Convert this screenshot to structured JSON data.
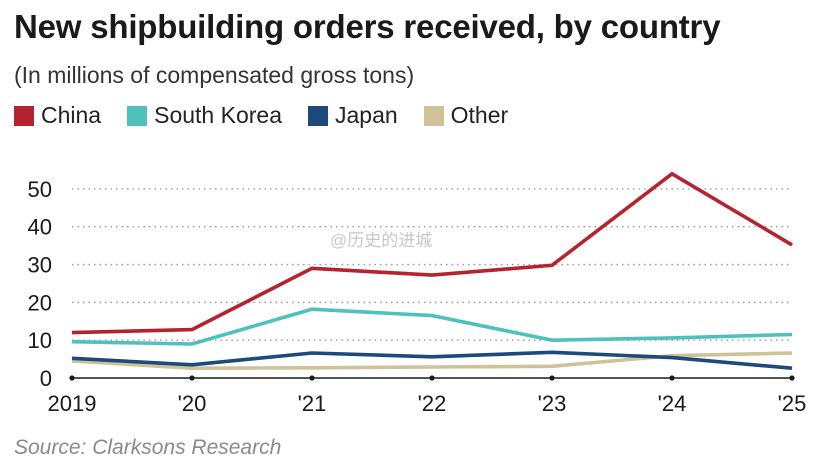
{
  "title": "New shipbuilding orders received, by country",
  "subtitle": "(In millions of compensated gross tons)",
  "source": "Source: Clarksons Research",
  "watermark": "@历史的进城",
  "chart_data": {
    "type": "line",
    "title": "New shipbuilding orders received, by country",
    "subtitle": "(In millions of compensated gross tons)",
    "x": [
      "2019",
      "'20",
      "'21",
      "'22",
      "'23",
      "'24",
      "'25"
    ],
    "ylim": [
      0,
      55
    ],
    "yticks": [
      0,
      10,
      20,
      30,
      40,
      50
    ],
    "grid": true,
    "legend_placement": "top-left",
    "series": [
      {
        "name": "China",
        "color": "#b5232f",
        "values": [
          12.0,
          12.8,
          29.0,
          27.2,
          29.8,
          54.0,
          35.2
        ]
      },
      {
        "name": "South Korea",
        "color": "#4fc1bd",
        "values": [
          9.6,
          9.0,
          18.2,
          16.5,
          10.0,
          10.6,
          11.5
        ]
      },
      {
        "name": "Japan",
        "color": "#1d4a7c",
        "values": [
          5.2,
          3.5,
          6.6,
          5.6,
          6.8,
          5.4,
          2.6
        ]
      },
      {
        "name": "Other",
        "color": "#cfc298",
        "values": [
          4.5,
          2.6,
          2.7,
          2.9,
          3.1,
          5.9,
          6.6
        ]
      }
    ]
  }
}
